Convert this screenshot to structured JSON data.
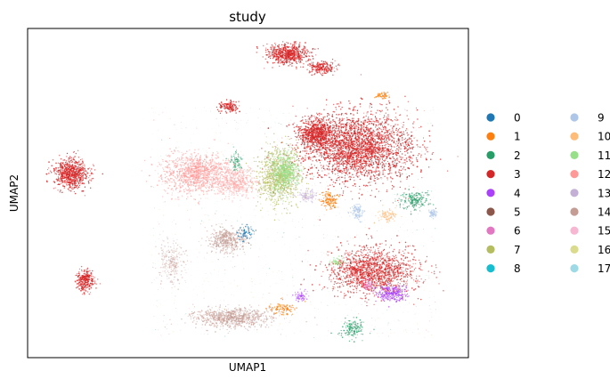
{
  "chart_data": {
    "type": "scatter",
    "title": "study",
    "xlabel": "UMAP1",
    "ylabel": "UMAP2",
    "grid": false,
    "xticks": [],
    "yticks": [],
    "legend_position": "right",
    "legend_columns": 2,
    "series": [
      {
        "name": "0",
        "color": "#1f77b4"
      },
      {
        "name": "1",
        "color": "#ff7f0e"
      },
      {
        "name": "2",
        "color": "#279e68"
      },
      {
        "name": "3",
        "color": "#d62728"
      },
      {
        "name": "4",
        "color": "#aa40fc"
      },
      {
        "name": "5",
        "color": "#8c564b"
      },
      {
        "name": "6",
        "color": "#e377c2"
      },
      {
        "name": "7",
        "color": "#b5bd61"
      },
      {
        "name": "8",
        "color": "#17becf"
      },
      {
        "name": "9",
        "color": "#aec7e8"
      },
      {
        "name": "10",
        "color": "#ffbb78"
      },
      {
        "name": "11",
        "color": "#98df8a"
      },
      {
        "name": "12",
        "color": "#ff9896"
      },
      {
        "name": "13",
        "color": "#c5b0d5"
      },
      {
        "name": "14",
        "color": "#c49c94"
      },
      {
        "name": "15",
        "color": "#f7b6d2"
      },
      {
        "name": "16",
        "color": "#dbdb8d"
      },
      {
        "name": "17",
        "color": "#9edae5"
      }
    ]
  }
}
